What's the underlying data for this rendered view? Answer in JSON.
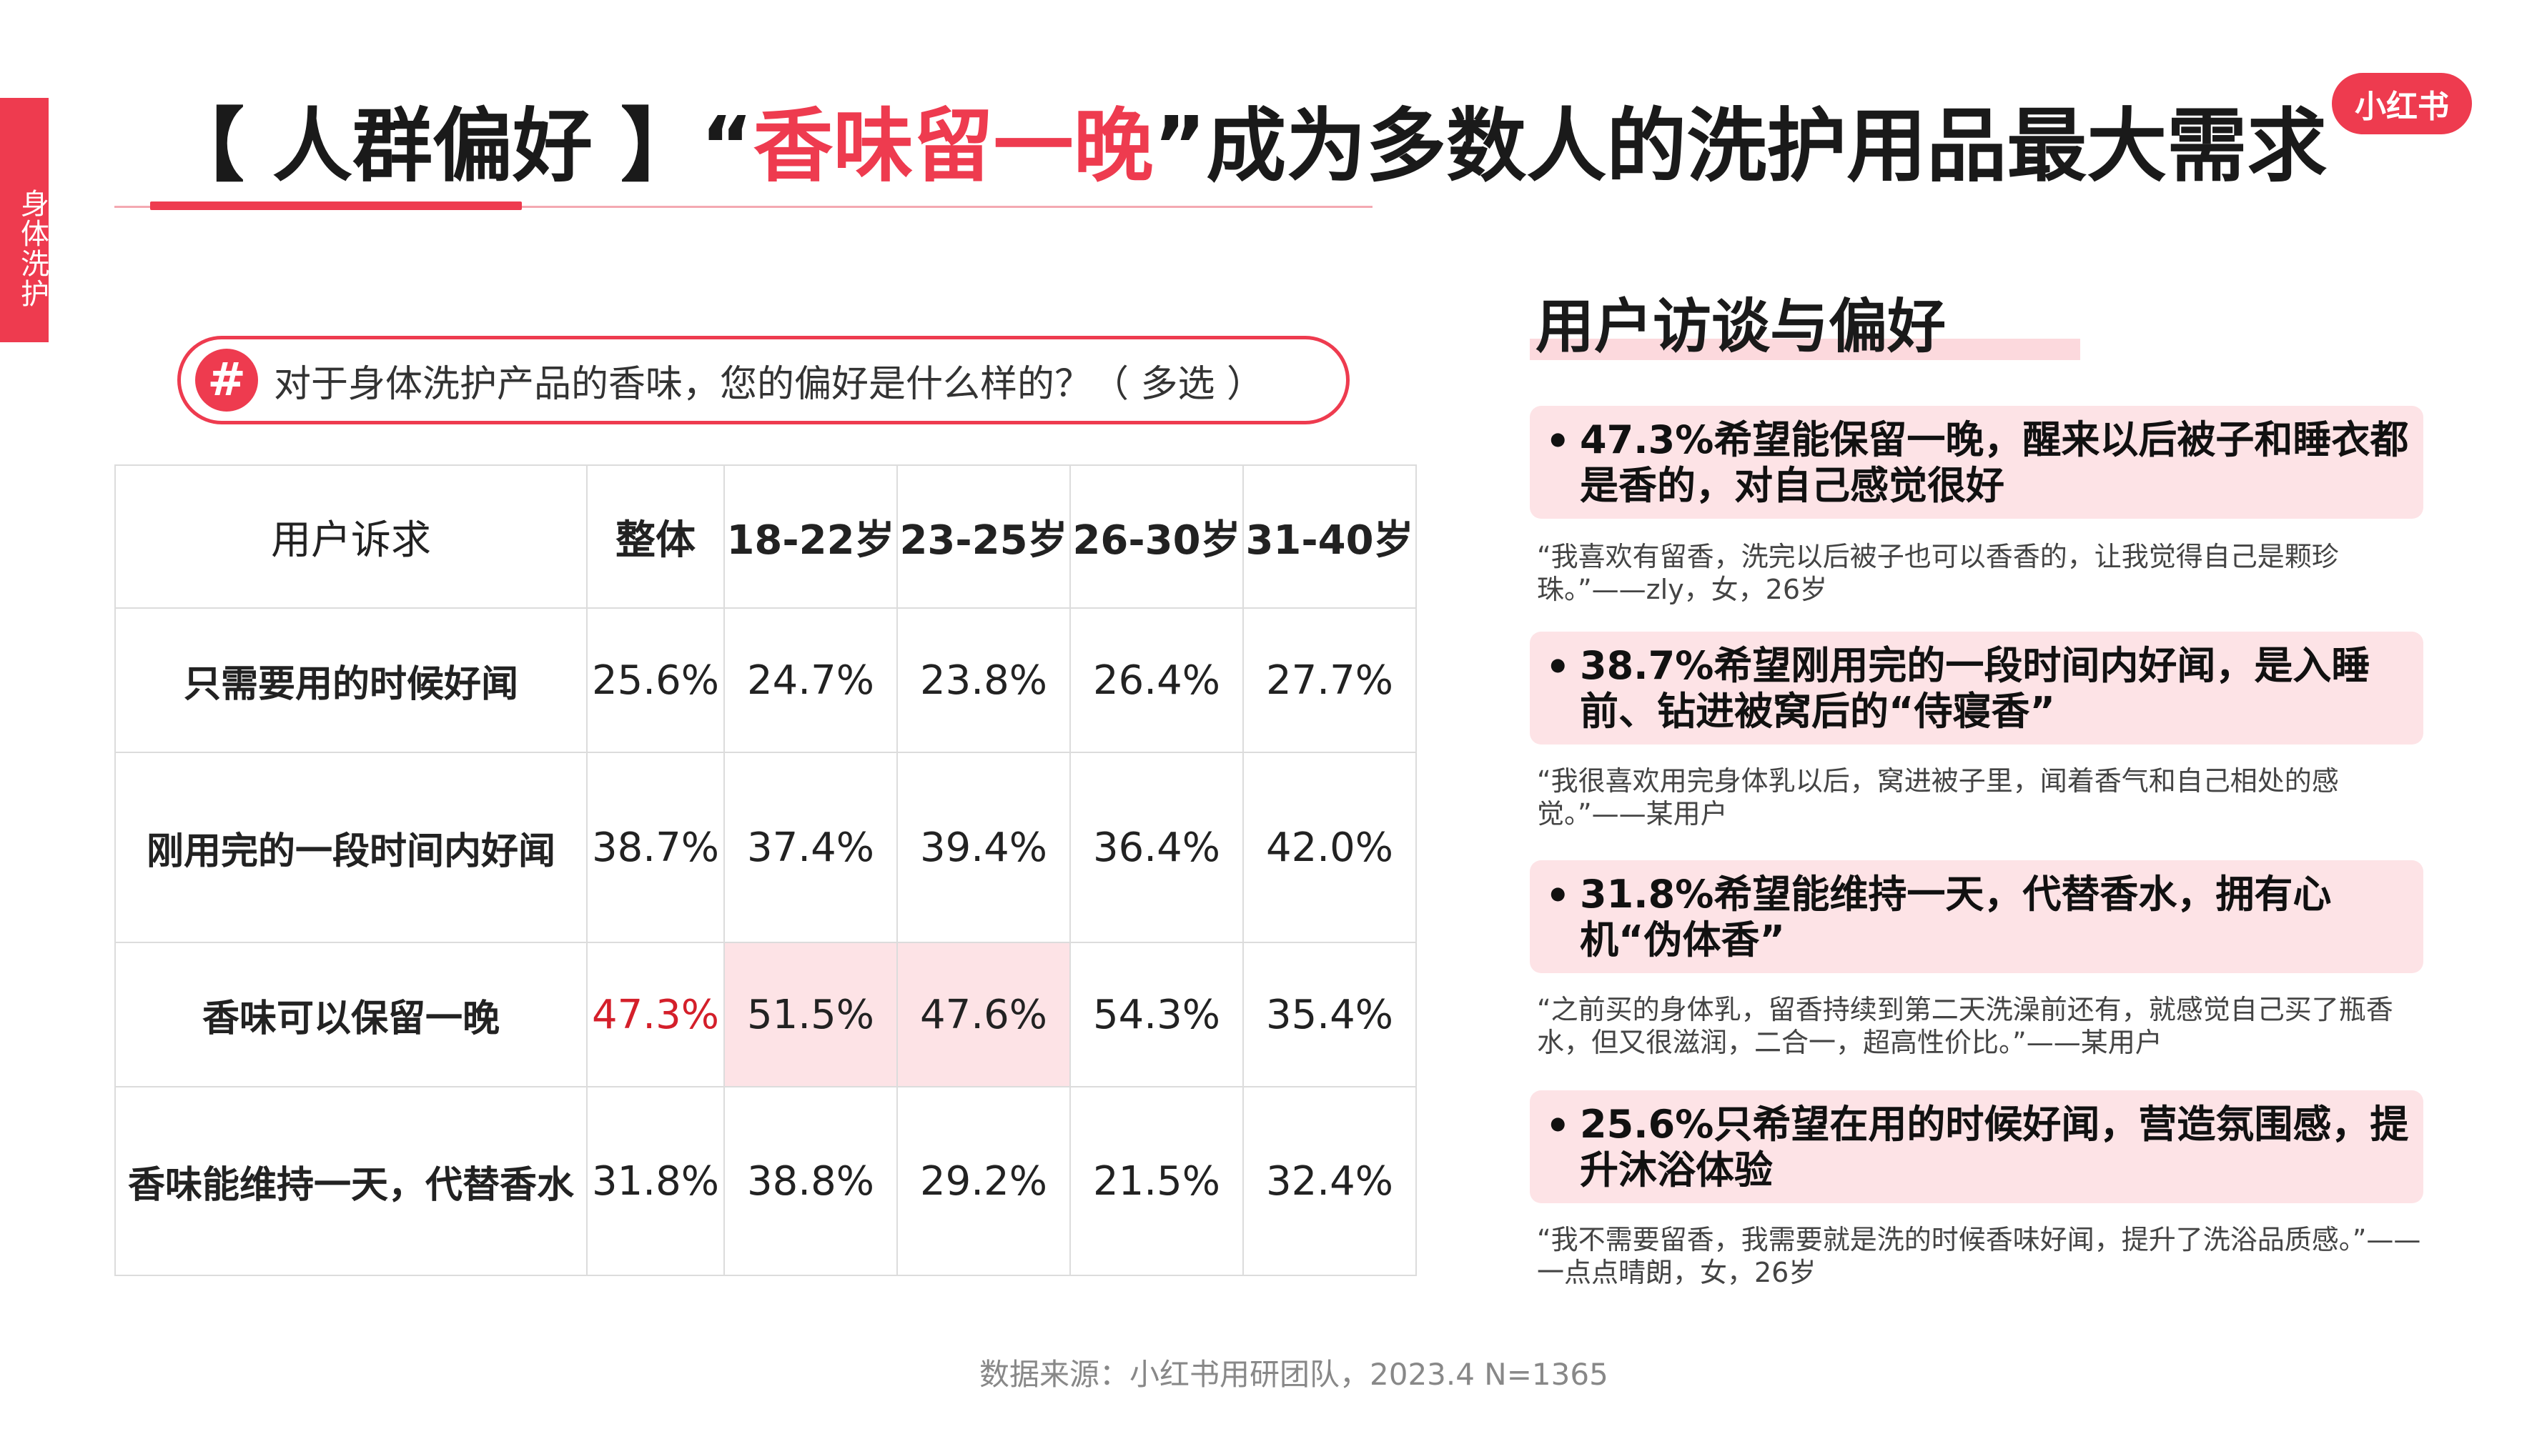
{
  "side_tab": "身体洗护",
  "brand_logo": "小红书",
  "title": {
    "prefix": "【 人群偏好 】“",
    "highlight": "香味留一晚",
    "suffix": "”成为多数人的洗护用品最大需求"
  },
  "question": {
    "icon": "#",
    "text": "对于身体洗护产品的香味，您的偏好是什么样的？（ 多选 ）"
  },
  "table": {
    "headers": [
      "用户诉求",
      "整体",
      "18-22岁",
      "23-25岁",
      "26-30岁",
      "31-40岁"
    ],
    "rows": [
      {
        "label": "只需要用的时候好闻",
        "values": [
          "25.6%",
          "24.7%",
          "23.8%",
          "26.4%",
          "27.7%"
        ]
      },
      {
        "label": "刚用完的一段时间内好闻",
        "values": [
          "38.7%",
          "37.4%",
          "39.4%",
          "36.4%",
          "42.0%"
        ]
      },
      {
        "label": "香味可以保留一晚",
        "values": [
          "47.3%",
          "51.5%",
          "47.6%",
          "54.3%",
          "35.4%"
        ]
      },
      {
        "label": "香味能维持一天，代替香水",
        "values": [
          "31.8%",
          "38.8%",
          "29.2%",
          "21.5%",
          "32.4%"
        ]
      }
    ]
  },
  "interviews": {
    "title": "用户访谈与偏好",
    "items": [
      {
        "finding": "47.3%希望能保留一晚，醒来以后被子和睡衣都是香的，对自己感觉很好",
        "quote": "“我喜欢有留香，洗完以后被子也可以香香的，让我觉得自己是颗珍珠。”——zly，女，26岁"
      },
      {
        "finding": "38.7%希望刚用完的一段时间内好闻，是入睡前、钻进被窝后的“侍寝香”",
        "quote": "“我很喜欢用完身体乳以后，窝进被子里，闻着香气和自己相处的感觉。”——某用户"
      },
      {
        "finding": "31.8%希望能维持一天，代替香水，拥有心机“伪体香”",
        "quote": "“之前买的身体乳，留香持续到第二天洗澡前还有，就感觉自己买了瓶香水，但又很滋润，二合一，超高性价比。”——某用户"
      },
      {
        "finding": "25.6%只希望在用的时候好闻，营造氛围感，提升沐浴体验",
        "quote": "“我不需要留香，我需要就是洗的时候香味好闻，提升了洗浴品质感。”——一点点晴朗，女，26岁"
      }
    ]
  },
  "source": "数据来源：小红书用研团队，2023.4 N=1365",
  "colors": {
    "accent": "#ee3b4f",
    "highlight_bg": "#fde3e6",
    "emphasis_text": "#d41f2a"
  }
}
